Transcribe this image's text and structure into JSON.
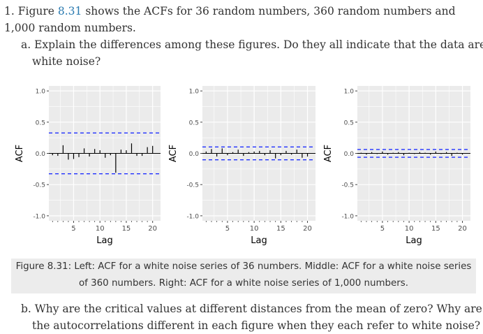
{
  "question1": {
    "number": "1.",
    "text_before": "Figure ",
    "figure_ref": "8.31",
    "text_after": " shows the ACFs for 36 random numbers, 360 random numbers and 1,000 random numbers."
  },
  "question_a": {
    "label": "a.",
    "text": "Explain the differences among these figures. Do they all indicate that the data are white noise?"
  },
  "question_b": {
    "label": "b.",
    "text": "Why are the critical values at different distances from the mean of zero? Why are the autocorrelations different in each figure when they each refer to white noise?"
  },
  "caption": {
    "line1": "Figure 8.31: Left: ACF for a white noise series of 36 numbers. Middle: ACF for a white noise series",
    "line2": "of 360 numbers. Right: ACF for a white noise series of 1,000 numbers."
  },
  "colors": {
    "panel_bg": "#ebebeb",
    "grid": "#ffffff",
    "bound_line": "#1f2fff",
    "spike": "#000000",
    "link": "#2a7ab0"
  },
  "chart_data": [
    {
      "type": "bar",
      "xlabel": "Lag",
      "ylabel": "ACF",
      "ylim": [
        -1.0,
        1.0
      ],
      "y_ticks": [
        "-1.0",
        "-0.5",
        "0.0",
        "0.5",
        "1.0"
      ],
      "y_tick_values": [
        -1.0,
        -0.5,
        0.0,
        0.5,
        1.0
      ],
      "x_ticks": [
        "5",
        "10",
        "15",
        "20"
      ],
      "x_tick_values": [
        5,
        10,
        15,
        20
      ],
      "xlim": [
        0.3,
        21.5
      ],
      "critical_value": 0.327,
      "lags": [
        1,
        2,
        3,
        4,
        5,
        6,
        7,
        8,
        9,
        10,
        11,
        12,
        13,
        14,
        15,
        16,
        17,
        18,
        19,
        20
      ],
      "values": [
        -0.03,
        -0.04,
        0.13,
        -0.1,
        -0.09,
        -0.06,
        0.08,
        -0.05,
        0.07,
        0.05,
        -0.07,
        -0.03,
        -0.31,
        0.06,
        0.05,
        0.16,
        -0.04,
        -0.04,
        0.1,
        0.12
      ],
      "grid": true
    },
    {
      "type": "bar",
      "xlabel": "Lag",
      "ylabel": "ACF",
      "ylim": [
        -1.0,
        1.0
      ],
      "y_ticks": [
        "-1.0",
        "-0.5",
        "0.0",
        "0.5",
        "1.0"
      ],
      "y_tick_values": [
        -1.0,
        -0.5,
        0.0,
        0.5,
        1.0
      ],
      "x_ticks": [
        "5",
        "10",
        "15",
        "20"
      ],
      "x_tick_values": [
        5,
        10,
        15,
        20
      ],
      "xlim": [
        0.3,
        21.5
      ],
      "critical_value": 0.103,
      "lags": [
        1,
        2,
        3,
        4,
        5,
        6,
        7,
        8,
        9,
        10,
        11,
        12,
        13,
        14,
        15,
        16,
        17,
        18,
        19,
        20
      ],
      "values": [
        0.03,
        0.07,
        -0.05,
        0.08,
        -0.03,
        0.02,
        0.06,
        -0.04,
        0.02,
        0.03,
        0.04,
        -0.03,
        0.05,
        -0.08,
        -0.03,
        0.04,
        -0.02,
        0.06,
        -0.07,
        -0.05
      ],
      "grid": true
    },
    {
      "type": "bar",
      "xlabel": "Lag",
      "ylabel": "ACF",
      "ylim": [
        -1.0,
        1.0
      ],
      "y_ticks": [
        "-1.0",
        "-0.5",
        "0.0",
        "0.5",
        "1.0"
      ],
      "y_tick_values": [
        -1.0,
        -0.5,
        0.0,
        0.5,
        1.0
      ],
      "x_ticks": [
        "5",
        "10",
        "15",
        "20"
      ],
      "x_tick_values": [
        5,
        10,
        15,
        20
      ],
      "xlim": [
        0.3,
        21.5
      ],
      "critical_value": 0.062,
      "lags": [
        1,
        2,
        3,
        4,
        5,
        6,
        7,
        8,
        9,
        10,
        11,
        12,
        13,
        14,
        15,
        16,
        17,
        18,
        19,
        20
      ],
      "values": [
        0.01,
        -0.02,
        0.02,
        -0.01,
        0.03,
        -0.02,
        0.01,
        0.02,
        -0.03,
        0.01,
        -0.01,
        0.02,
        0.01,
        -0.02,
        0.03,
        -0.01,
        0.02,
        -0.04,
        0.01,
        -0.02
      ],
      "grid": true
    }
  ]
}
